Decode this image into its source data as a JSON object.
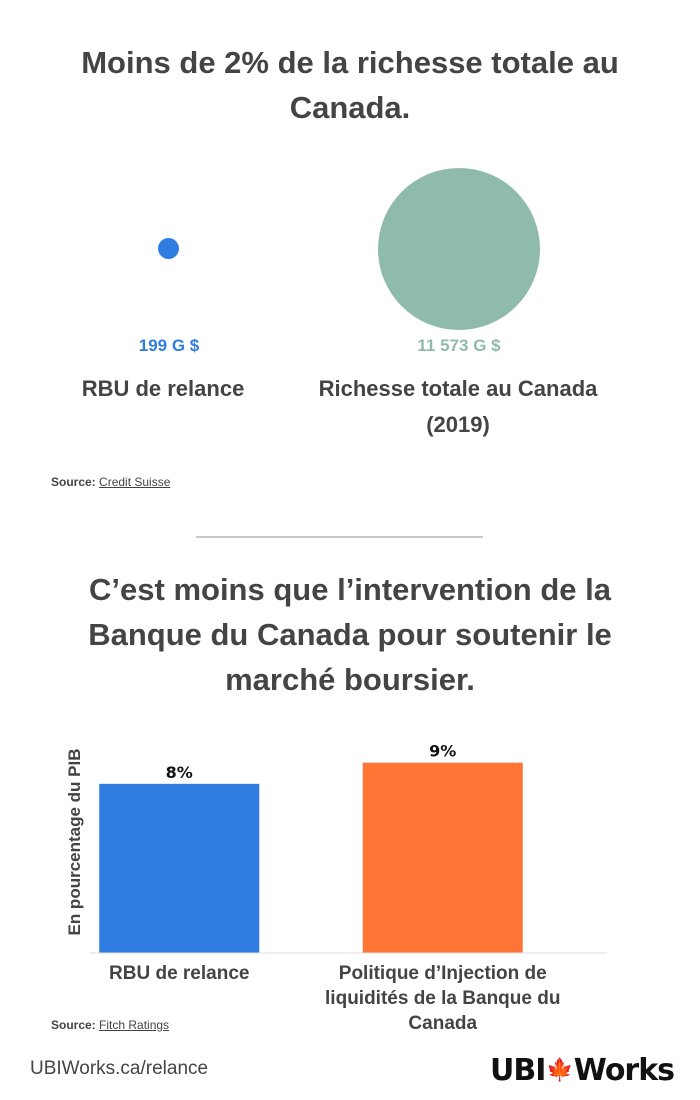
{
  "section1": {
    "title": "Moins de 2% de la richesse totale au Canada.",
    "bubbles": [
      {
        "label": "RBU de relance",
        "value_label": "199 G $",
        "value": 199,
        "color": "#2f7de1"
      },
      {
        "label": "Richesse totale au Canada (2019)",
        "value_label": "11 573 G $",
        "value": 11573,
        "color": "#8fbcaa"
      }
    ],
    "source_prefix": "Source:",
    "source_name": "Credit Suisse"
  },
  "section2": {
    "title": "C’est moins que l’intervention de la Banque du Canada pour soutenir le marché boursier.",
    "source_prefix": "Source:",
    "source_name": "Fitch Ratings"
  },
  "chart_data": {
    "type": "bar",
    "ylabel": "En pourcentage du PIB",
    "categories": [
      "RBU de relance",
      "Politique d’Injection de liquidités de la Banque du Canada"
    ],
    "values": [
      8,
      9
    ],
    "value_labels": [
      "8%",
      "9%"
    ],
    "colors": [
      "#2f7de1",
      "#fe7536"
    ],
    "ylim": [
      0,
      9.6
    ],
    "grid": false
  },
  "footer": {
    "url": "UBIWorks.ca/relance",
    "logo_left": "UBI",
    "logo_leaf": "🍁",
    "logo_right": "Works"
  }
}
